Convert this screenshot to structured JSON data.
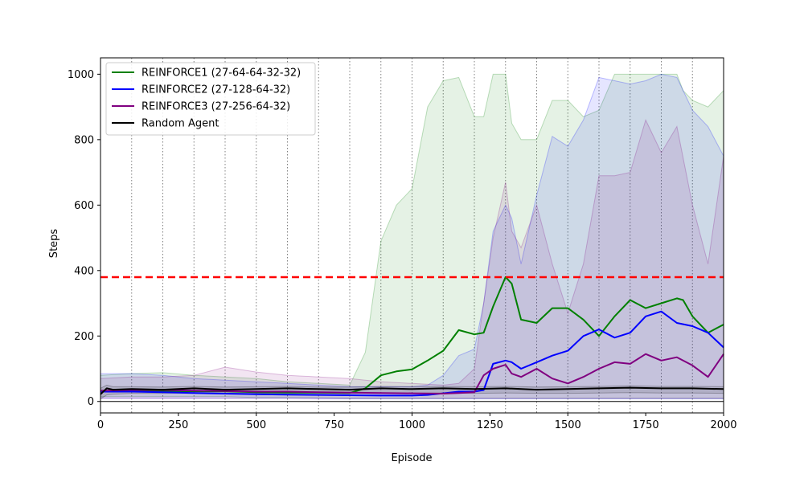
{
  "chart_data": {
    "type": "line",
    "title": "",
    "xlabel": "Episode",
    "ylabel": "Steps",
    "xlim": [
      0,
      2000
    ],
    "ylim": [
      -35,
      1050
    ],
    "xticks": [
      0,
      250,
      500,
      750,
      1000,
      1250,
      1500,
      1750,
      2000
    ],
    "yticks": [
      0,
      200,
      400,
      600,
      800,
      1000
    ],
    "vertical_lines_x": [
      100,
      200,
      300,
      400,
      500,
      600,
      700,
      800,
      900,
      1000,
      1100,
      1200,
      1300,
      1400,
      1500,
      1600,
      1700,
      1800,
      1900
    ],
    "threshold": {
      "y": 380,
      "color": "#ff0000",
      "style": "dashed"
    },
    "zero_line": 0,
    "legend": {
      "position": "top-left"
    },
    "series": [
      {
        "name": "REINFORCE1 (27-64-64-32-32)",
        "color": "#008000",
        "x": [
          0,
          100,
          200,
          300,
          400,
          500,
          600,
          700,
          800,
          850,
          900,
          950,
          1000,
          1050,
          1100,
          1150,
          1200,
          1230,
          1260,
          1300,
          1320,
          1350,
          1400,
          1450,
          1500,
          1550,
          1600,
          1650,
          1700,
          1750,
          1800,
          1850,
          1870,
          1900,
          1950,
          2000
        ],
        "y": [
          32,
          34,
          32,
          31,
          31,
          28,
          27,
          27,
          26,
          40,
          80,
          92,
          98,
          125,
          155,
          218,
          205,
          210,
          290,
          380,
          360,
          250,
          240,
          285,
          285,
          250,
          200,
          260,
          310,
          285,
          300,
          315,
          310,
          260,
          210,
          235
        ],
        "upper": [
          80,
          85,
          88,
          80,
          75,
          70,
          60,
          55,
          50,
          150,
          490,
          600,
          650,
          900,
          980,
          990,
          870,
          870,
          1000,
          1000,
          850,
          800,
          800,
          920,
          920,
          870,
          890,
          1000,
          1000,
          1000,
          1000,
          1000,
          950,
          920,
          900,
          950
        ],
        "lower": [
          15,
          15,
          15,
          15,
          15,
          12,
          12,
          12,
          10,
          10,
          10,
          10,
          10,
          10,
          10,
          10,
          10,
          10,
          10,
          10,
          10,
          10,
          10,
          10,
          10,
          10,
          10,
          10,
          10,
          10,
          10,
          10,
          10,
          10,
          10,
          10
        ]
      },
      {
        "name": "REINFORCE2 (27-128-64-32)",
        "color": "#0000ff",
        "x": [
          0,
          100,
          200,
          300,
          400,
          500,
          600,
          700,
          800,
          900,
          1000,
          1050,
          1100,
          1150,
          1200,
          1230,
          1260,
          1300,
          1320,
          1350,
          1400,
          1450,
          1500,
          1550,
          1600,
          1650,
          1700,
          1750,
          1800,
          1850,
          1900,
          1950,
          2000
        ],
        "y": [
          30,
          30,
          28,
          26,
          24,
          22,
          21,
          20,
          19,
          18,
          18,
          20,
          25,
          30,
          30,
          35,
          115,
          125,
          120,
          100,
          120,
          140,
          155,
          200,
          220,
          195,
          210,
          260,
          275,
          240,
          230,
          210,
          165
        ],
        "upper": [
          85,
          85,
          80,
          70,
          65,
          60,
          55,
          50,
          45,
          45,
          45,
          50,
          80,
          140,
          160,
          300,
          520,
          600,
          560,
          420,
          630,
          810,
          780,
          860,
          990,
          980,
          970,
          980,
          1000,
          990,
          890,
          840,
          750
        ],
        "lower": [
          10,
          10,
          10,
          10,
          10,
          10,
          10,
          8,
          8,
          8,
          8,
          8,
          8,
          8,
          8,
          8,
          8,
          8,
          8,
          8,
          8,
          8,
          8,
          8,
          8,
          8,
          8,
          8,
          8,
          8,
          8,
          8,
          8
        ]
      },
      {
        "name": "REINFORCE3 (27-256-64-32)",
        "color": "#800080",
        "x": [
          0,
          100,
          200,
          300,
          400,
          500,
          600,
          700,
          800,
          900,
          1000,
          1100,
          1150,
          1200,
          1230,
          1260,
          1300,
          1320,
          1350,
          1400,
          1450,
          1500,
          1550,
          1600,
          1650,
          1700,
          1750,
          1800,
          1850,
          1900,
          1950,
          2000
        ],
        "y": [
          33,
          35,
          35,
          33,
          32,
          30,
          30,
          28,
          27,
          26,
          25,
          24,
          26,
          28,
          80,
          100,
          112,
          85,
          75,
          100,
          70,
          55,
          75,
          100,
          120,
          115,
          145,
          125,
          135,
          110,
          75,
          145
        ],
        "upper": [
          70,
          75,
          75,
          80,
          105,
          90,
          80,
          75,
          70,
          60,
          55,
          50,
          55,
          100,
          300,
          500,
          670,
          520,
          470,
          600,
          420,
          270,
          420,
          690,
          690,
          700,
          860,
          760,
          840,
          600,
          420,
          750
        ],
        "lower": [
          10,
          10,
          10,
          10,
          10,
          10,
          10,
          10,
          10,
          10,
          10,
          10,
          10,
          10,
          10,
          10,
          10,
          10,
          10,
          10,
          10,
          10,
          10,
          10,
          10,
          10,
          10,
          10,
          10,
          10,
          10,
          10
        ]
      },
      {
        "name": "Random Agent",
        "color": "#000000",
        "x": [
          0,
          20,
          40,
          100,
          200,
          300,
          400,
          500,
          600,
          700,
          800,
          900,
          1000,
          1100,
          1200,
          1300,
          1400,
          1500,
          1600,
          1700,
          1800,
          1900,
          2000
        ],
        "y": [
          22,
          40,
          36,
          38,
          36,
          40,
          36,
          38,
          40,
          38,
          36,
          40,
          38,
          40,
          38,
          40,
          36,
          38,
          40,
          42,
          40,
          40,
          38
        ],
        "upper": [
          40,
          50,
          45,
          45,
          44,
          46,
          44,
          45,
          46,
          44,
          44,
          46,
          45,
          46,
          45,
          46,
          44,
          45,
          46,
          48,
          46,
          46,
          45
        ],
        "lower": [
          8,
          20,
          22,
          25,
          25,
          26,
          25,
          25,
          26,
          25,
          25,
          26,
          25,
          26,
          25,
          26,
          25,
          25,
          26,
          27,
          26,
          26,
          25
        ]
      }
    ]
  }
}
